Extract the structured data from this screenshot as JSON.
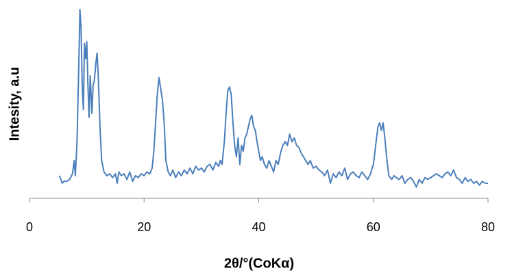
{
  "chart_data": {
    "type": "line",
    "x_label": "2θ/°(CoKα)",
    "y_label": "Intesity, a.u",
    "xlim": [
      0,
      80
    ],
    "xticks": [
      0,
      20,
      40,
      60,
      80
    ],
    "ylim": [
      0,
      100
    ],
    "grid": false,
    "series": [
      {
        "color": "#4a7ebb",
        "x": [
          5.2,
          5.5,
          5.7,
          6,
          6.5,
          7,
          7.5,
          7.8,
          8,
          8.3,
          8.6,
          8.8,
          9,
          9.2,
          9.4,
          9.6,
          9.8,
          10,
          10.2,
          10.4,
          10.6,
          10.9,
          11.1,
          11.3,
          11.6,
          11.8,
          12,
          12.3,
          12.6,
          13,
          13.5,
          14,
          14.5,
          15,
          15.3,
          15.6,
          16,
          16.5,
          17,
          17.5,
          18,
          18.5,
          19,
          19.5,
          20,
          20.5,
          21,
          21.4,
          21.7,
          22,
          22.3,
          22.6,
          22.9,
          23.2,
          23.5,
          23.8,
          24.2,
          24.6,
          25,
          25.5,
          26,
          26.5,
          27,
          27.5,
          28,
          28.5,
          29,
          29.5,
          30,
          30.5,
          31,
          31.5,
          32,
          32.5,
          33,
          33.3,
          33.6,
          34,
          34.3,
          34.6,
          34.9,
          35.2,
          35.5,
          35.8,
          36.1,
          36.4,
          36.7,
          37,
          37.3,
          37.6,
          37.9,
          38.2,
          38.5,
          38.8,
          39.1,
          39.4,
          39.7,
          40,
          40.3,
          40.6,
          41,
          41.4,
          41.8,
          42.2,
          42.6,
          43,
          43.4,
          43.8,
          44.2,
          44.6,
          45,
          45.4,
          45.8,
          46.2,
          46.6,
          47,
          47.4,
          47.8,
          48.2,
          48.6,
          49,
          49.5,
          50,
          50.5,
          51,
          51.5,
          52,
          52.5,
          53,
          53.5,
          54,
          54.5,
          55,
          55.5,
          56,
          56.5,
          57,
          57.5,
          58,
          58.5,
          59,
          59.5,
          60,
          60.4,
          60.8,
          61.1,
          61.4,
          61.7,
          62,
          62.3,
          62.7,
          63.2,
          63.6,
          64,
          64.5,
          65,
          65.5,
          66,
          66.5,
          67,
          67.5,
          68,
          68.5,
          69,
          69.5,
          70,
          70.5,
          71,
          71.5,
          72,
          72.5,
          73,
          73.5,
          74,
          74.5,
          75,
          75.5,
          76,
          76.5,
          77,
          77.5,
          78,
          78.5,
          79,
          79.5,
          80
        ],
        "values": [
          12,
          10,
          8,
          9,
          9,
          10,
          13,
          20,
          12,
          30,
          70,
          100,
          90,
          60,
          47,
          82,
          74,
          83,
          60,
          43,
          65,
          45,
          60,
          62,
          72,
          77,
          65,
          38,
          20,
          14,
          12,
          13,
          11,
          13,
          8,
          14,
          12,
          13,
          10,
          14,
          9,
          12,
          11,
          13,
          12,
          14,
          13,
          16,
          25,
          40,
          55,
          64,
          58,
          52,
          40,
          20,
          14,
          12,
          15,
          11,
          14,
          12,
          15,
          13,
          16,
          13,
          17,
          15,
          16,
          14,
          17,
          18,
          15,
          19,
          17,
          20,
          18,
          30,
          45,
          57,
          59,
          55,
          40,
          28,
          22,
          32,
          18,
          28,
          25,
          32,
          34,
          38,
          42,
          44,
          38,
          36,
          30,
          25,
          20,
          22,
          18,
          16,
          20,
          17,
          14,
          20,
          18,
          24,
          28,
          30,
          28,
          34,
          30,
          32,
          28,
          27,
          24,
          22,
          20,
          18,
          20,
          16,
          17,
          15,
          14,
          12,
          15,
          8,
          13,
          11,
          14,
          12,
          16,
          10,
          13,
          14,
          12,
          11,
          14,
          12,
          10,
          13,
          18,
          28,
          38,
          40,
          36,
          40,
          32,
          22,
          12,
          10,
          12,
          11,
          10,
          12,
          8,
          10,
          11,
          9,
          6,
          10,
          8,
          11,
          10,
          11,
          12,
          13,
          12,
          11,
          13,
          14,
          12,
          15,
          11,
          10,
          8,
          11,
          9,
          10,
          8,
          9,
          7,
          9,
          8,
          8
        ]
      }
    ]
  }
}
